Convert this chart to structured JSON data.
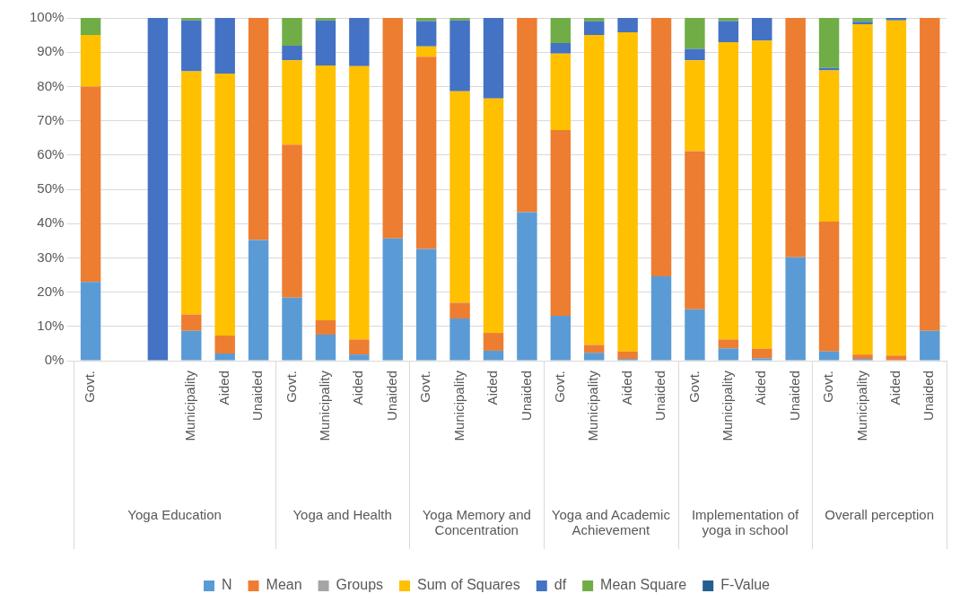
{
  "chart_data": {
    "type": "bar",
    "stacked": true,
    "categories": [
      "Govt.",
      null,
      null,
      "Municipality",
      "Aided",
      "Unaided",
      "Govt.",
      "Municipality",
      "Aided",
      "Unaided",
      "Govt.",
      "Municipality",
      "Aided",
      "Unaided",
      "Govt.",
      "Municipality",
      "Aided",
      "Unaided",
      "Govt.",
      "Municipality",
      "Aided",
      "Unaided",
      "Govt.",
      "Municipality",
      "Aided",
      "Unaided"
    ],
    "series": [
      {
        "name": "N",
        "color": "#5b9bd5",
        "values": [
          23.0,
          0,
          0,
          8.7,
          2.1,
          35.2,
          18.4,
          7.6,
          1.8,
          35.7,
          32.6,
          12.3,
          2.9,
          43.3,
          13.1,
          2.3,
          0.5,
          24.6,
          15.0,
          3.6,
          0.7,
          30.2,
          2.7,
          0.5,
          0,
          8.7
        ]
      },
      {
        "name": "Mean",
        "color": "#ed7d31",
        "values": [
          57.0,
          0,
          0,
          4.8,
          5.2,
          64.8,
          44.6,
          4.2,
          4.4,
          64.3,
          56.1,
          4.6,
          5.2,
          56.7,
          54.2,
          2.3,
          2.2,
          75.4,
          46.1,
          2.6,
          2.8,
          69.8,
          37.9,
          1.3,
          1.5,
          91.3
        ]
      },
      {
        "name": "Groups",
        "color": "#a5a5a5",
        "values": [
          0,
          0,
          0,
          0,
          0,
          0,
          0,
          0,
          0,
          0,
          0,
          0,
          0,
          0,
          0,
          0,
          0,
          0,
          0,
          0,
          0,
          0,
          0,
          0,
          0,
          0
        ]
      },
      {
        "name": "Sum of Squares",
        "color": "#ffc000",
        "values": [
          15.0,
          0,
          0,
          70.9,
          76.5,
          0,
          24.6,
          74.3,
          79.7,
          0,
          3.0,
          61.7,
          68.4,
          0,
          22.3,
          90.4,
          93.1,
          0,
          26.5,
          86.7,
          89.9,
          0,
          44.1,
          96.4,
          97.8,
          0
        ]
      },
      {
        "name": "df",
        "color": "#4472c4",
        "values": [
          0,
          0,
          100,
          14.9,
          16.2,
          0,
          4.3,
          13.2,
          14.1,
          0,
          7.4,
          20.7,
          23.5,
          0,
          3.1,
          4.0,
          4.2,
          0,
          3.4,
          6.2,
          6.6,
          0,
          0.7,
          0.7,
          0.7,
          0
        ]
      },
      {
        "name": "Mean Square",
        "color": "#70ad47",
        "values": [
          5.0,
          0,
          0,
          0.7,
          0,
          0,
          8.1,
          0.7,
          0,
          0,
          0.9,
          0.7,
          0,
          0,
          7.3,
          1.0,
          0,
          0,
          9.0,
          0.9,
          0,
          0,
          14.6,
          1.1,
          0,
          0
        ]
      },
      {
        "name": "F-Value",
        "color": "#255e91",
        "values": [
          0,
          0,
          0,
          0,
          0,
          0,
          0,
          0,
          0,
          0,
          0,
          0,
          0,
          0,
          0,
          0,
          0,
          0,
          0,
          0,
          0,
          0,
          0,
          0,
          0,
          0
        ]
      }
    ],
    "ylim": [
      0,
      100
    ],
    "yticks": [
      {
        "value": 0,
        "label": "0%"
      },
      {
        "value": 10,
        "label": "10%"
      },
      {
        "value": 20,
        "label": "20%"
      },
      {
        "value": 30,
        "label": "30%"
      },
      {
        "value": 40,
        "label": "40%"
      },
      {
        "value": 50,
        "label": "50%"
      },
      {
        "value": 60,
        "label": "60%"
      },
      {
        "value": 70,
        "label": "70%"
      },
      {
        "value": 80,
        "label": "80%"
      },
      {
        "value": 90,
        "label": "90%"
      },
      {
        "value": 100,
        "label": "100%"
      }
    ],
    "grid": "y",
    "legend": "bottom",
    "annotations": [
      "Yoga Education",
      "Yoga and Health",
      "Yoga Memory and Concentration",
      "Yoga and Academic Achievement",
      "Implementation of yoga in school",
      "Overall perception"
    ]
  }
}
